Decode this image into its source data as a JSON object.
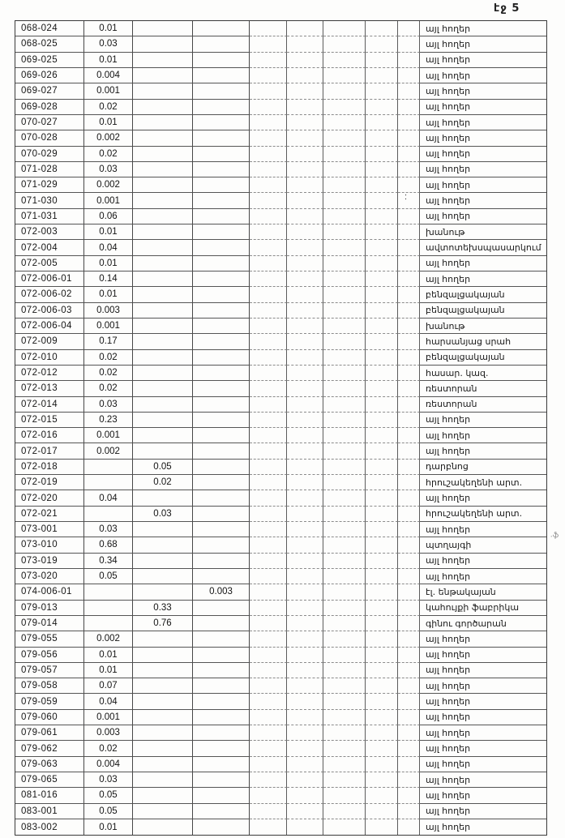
{
  "page": {
    "header_label": "էջ 5"
  },
  "stray_marks": {
    "mid_colon": ":",
    "right_margin_mark": ".ֆ"
  },
  "table": {
    "rows": [
      {
        "code": "068-024",
        "v1": "0.01",
        "use": "այլ հողեր"
      },
      {
        "code": "068-025",
        "v1": "0.03",
        "use": "այլ հողեր"
      },
      {
        "code": "069-025",
        "v1": "0.01",
        "use": "այլ հողեր"
      },
      {
        "code": "069-026",
        "v1": "0.004",
        "use": "այլ հողեր"
      },
      {
        "code": "069-027",
        "v1": "0.001",
        "use": "այլ հողեր"
      },
      {
        "code": "069-028",
        "v1": "0.02",
        "use": "այլ հողեր"
      },
      {
        "code": "070-027",
        "v1": "0.01",
        "use": "այլ հողեր"
      },
      {
        "code": "070-028",
        "v1": "0.002",
        "use": "այլ հողեր"
      },
      {
        "code": "070-029",
        "v1": "0.02",
        "use": "այլ հողեր"
      },
      {
        "code": "071-028",
        "v1": "0.03",
        "use": "այլ հողեր"
      },
      {
        "code": "071-029",
        "v1": "0.002",
        "use": "այլ հողեր"
      },
      {
        "code": "071-030",
        "v1": "0.001",
        "use": "այլ հողեր"
      },
      {
        "code": "071-031",
        "v1": "0.06",
        "use": "այլ հողեր"
      },
      {
        "code": "072-003",
        "v1": "0.01",
        "use": "խանութ"
      },
      {
        "code": "072-004",
        "v1": "0.04",
        "use": "ավտոտեխսպասարկում"
      },
      {
        "code": "072-005",
        "v1": "0.01",
        "use": "այլ հողեր"
      },
      {
        "code": "072-006-01",
        "v1": "0.14",
        "use": "այլ հողեր"
      },
      {
        "code": "072-006-02",
        "v1": "0.01",
        "use": "բենզալցակայան"
      },
      {
        "code": "072-006-03",
        "v1": "0.003",
        "use": "բենզալցակայան"
      },
      {
        "code": "072-006-04",
        "v1": "0.001",
        "use": "խանութ"
      },
      {
        "code": "072-009",
        "v1": "0.17",
        "use": "հարսանյաց սրահ"
      },
      {
        "code": "072-010",
        "v1": "0.02",
        "use": "բենզալցակայան"
      },
      {
        "code": "072-012",
        "v1": "0.02",
        "use": "հասար. կազ."
      },
      {
        "code": "072-013",
        "v1": "0.02",
        "use": "ռեստորան"
      },
      {
        "code": "072-014",
        "v1": "0.03",
        "use": "ռեստորան"
      },
      {
        "code": "072-015",
        "v1": "0.23",
        "use": "այլ հողեր"
      },
      {
        "code": "072-016",
        "v1": "0.001",
        "use": "այլ հողեր"
      },
      {
        "code": "072-017",
        "v1": "0.002",
        "use": "այլ հողեր"
      },
      {
        "code": "072-018",
        "v2": "0.05",
        "use": "դարբնոց"
      },
      {
        "code": "072-019",
        "v2": "0.02",
        "use": "հրուշակեղենի արտ."
      },
      {
        "code": "072-020",
        "v1": "0.04",
        "use": "այլ հողեր"
      },
      {
        "code": "072-021",
        "v2": "0.03",
        "use": "հրուշակեղենի արտ."
      },
      {
        "code": "073-001",
        "v1": "0.03",
        "use": "այլ հողեր"
      },
      {
        "code": "073-010",
        "v1": "0.68",
        "use": "պտղայգի"
      },
      {
        "code": "073-019",
        "v1": "0.34",
        "use": "այլ հողեր"
      },
      {
        "code": "073-020",
        "v1": "0.05",
        "use": "այլ հողեր"
      },
      {
        "code": "074-006-01",
        "v3": "0.003",
        "use": "էլ. ենթակայան"
      },
      {
        "code": "079-013",
        "v2": "0.33",
        "use": "կահույքի ֆաբրիկա"
      },
      {
        "code": "079-014",
        "v2": "0.76",
        "use": "գինու գործարան"
      },
      {
        "code": "079-055",
        "v1": "0.002",
        "use": "այլ հողեր"
      },
      {
        "code": "079-056",
        "v1": "0.01",
        "use": "այլ հողեր"
      },
      {
        "code": "079-057",
        "v1": "0.01",
        "use": "այլ հողեր"
      },
      {
        "code": "079-058",
        "v1": "0.07",
        "use": "այլ հողեր"
      },
      {
        "code": "079-059",
        "v1": "0.04",
        "use": "այլ հողեր"
      },
      {
        "code": "079-060",
        "v1": "0.001",
        "use": "այլ հողեր"
      },
      {
        "code": "079-061",
        "v1": "0.003",
        "use": "այլ հողեր"
      },
      {
        "code": "079-062",
        "v1": "0.02",
        "use": "այլ հողեր"
      },
      {
        "code": "079-063",
        "v1": "0.004",
        "use": "այլ հողեր"
      },
      {
        "code": "079-065",
        "v1": "0.03",
        "use": "այլ հողեր"
      },
      {
        "code": "081-016",
        "v1": "0.05",
        "use": "այլ հողեր"
      },
      {
        "code": "083-001",
        "v1": "0.05",
        "use": "այլ հողեր"
      },
      {
        "code": "083-002",
        "v1": "0.01",
        "use": "այլ հողեր"
      }
    ]
  }
}
